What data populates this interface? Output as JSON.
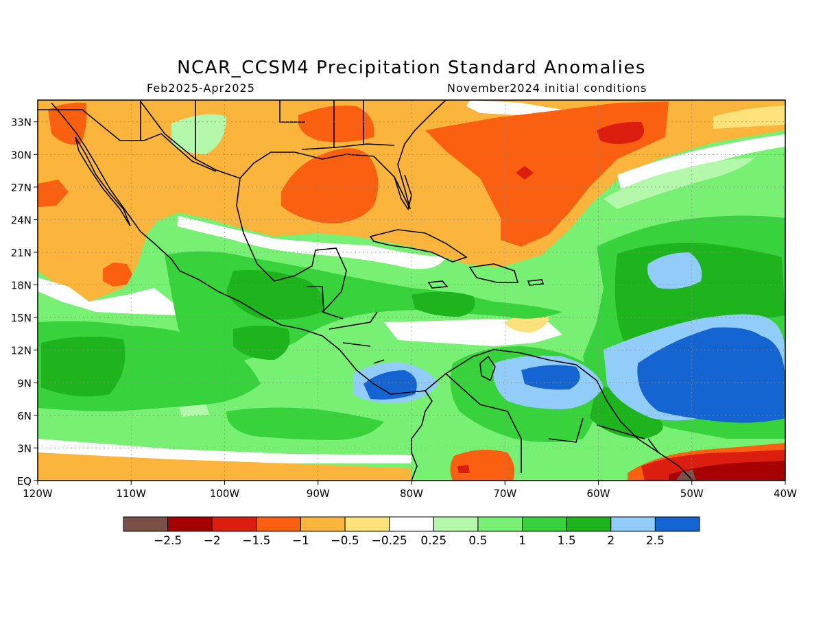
{
  "title": "NCAR_CCSM4 Precipitation Standard Anomalies",
  "period": "Feb2025-Apr2025",
  "init": "November2024 initial conditions",
  "map": {
    "lon_range": [
      -120,
      -40
    ],
    "lat_range": [
      0,
      35
    ],
    "grid": true,
    "lat_labels": [
      "EQ",
      "3N",
      "6N",
      "9N",
      "12N",
      "15N",
      "18N",
      "21N",
      "24N",
      "27N",
      "30N",
      "33N"
    ],
    "lat_values": [
      0,
      3,
      6,
      9,
      12,
      15,
      18,
      21,
      24,
      27,
      30,
      33
    ],
    "lon_labels": [
      "120W",
      "110W",
      "100W",
      "90W",
      "80W",
      "70W",
      "60W",
      "50W",
      "40W"
    ],
    "lon_values": [
      -120,
      -110,
      -100,
      -90,
      -80,
      -70,
      -60,
      -50,
      -40
    ]
  },
  "colors": {
    "below_-2.5": "#7a5048",
    "-2.5_-2": "#a60000",
    "-2_-1.5": "#dc1e10",
    "-1.5_-1": "#fb6010",
    "-1_-0.5": "#fbb53c",
    "-0.5_-0.25": "#fde27c",
    "neutral": "#ffffff",
    "0.25_0.5": "#b4f8ab",
    "0.5_1": "#78f073",
    "1_1.5": "#38d33c",
    "1.5_2": "#1eb41e",
    "2_2.5": "#92ccf8",
    "above_2.5": "#1464d2"
  },
  "colorbar": {
    "colors": [
      "#7a5048",
      "#a60000",
      "#dc1e10",
      "#fb6010",
      "#fbb53c",
      "#fde27c",
      "#ffffff",
      "#b4f8ab",
      "#78f073",
      "#38d33c",
      "#1eb41e",
      "#92ccf8",
      "#1464d2"
    ],
    "labels": [
      "−2.5",
      "−2",
      "−1.5",
      "−1",
      "−0.5",
      "−0.25",
      "0.25",
      "0.5",
      "1",
      "1.5",
      "2",
      "2.5"
    ]
  }
}
